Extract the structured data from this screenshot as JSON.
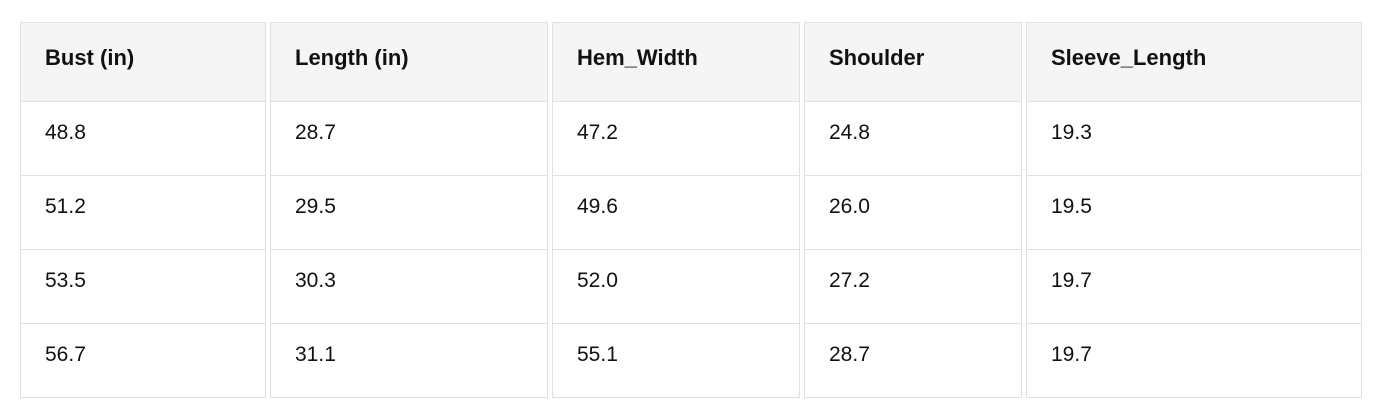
{
  "chart_data": {
    "type": "table",
    "title": "",
    "columns": [
      "Bust (in)",
      "Length (in)",
      "Hem_Width",
      "Shoulder",
      "Sleeve_Length"
    ],
    "rows": [
      [
        "48.8",
        "28.7",
        "47.2",
        "24.8",
        "19.3"
      ],
      [
        "51.2",
        "29.5",
        "49.6",
        "26.0",
        "19.5"
      ],
      [
        "53.5",
        "30.3",
        "52.0",
        "27.2",
        "19.7"
      ],
      [
        "56.7",
        "31.1",
        "55.1",
        "28.7",
        "19.7"
      ]
    ]
  },
  "colors": {
    "header_bg": "#f5f5f5",
    "cell_bg": "#ffffff",
    "border": "#e1e1e1",
    "text": "#111111",
    "page_bg": "#ffffff"
  }
}
